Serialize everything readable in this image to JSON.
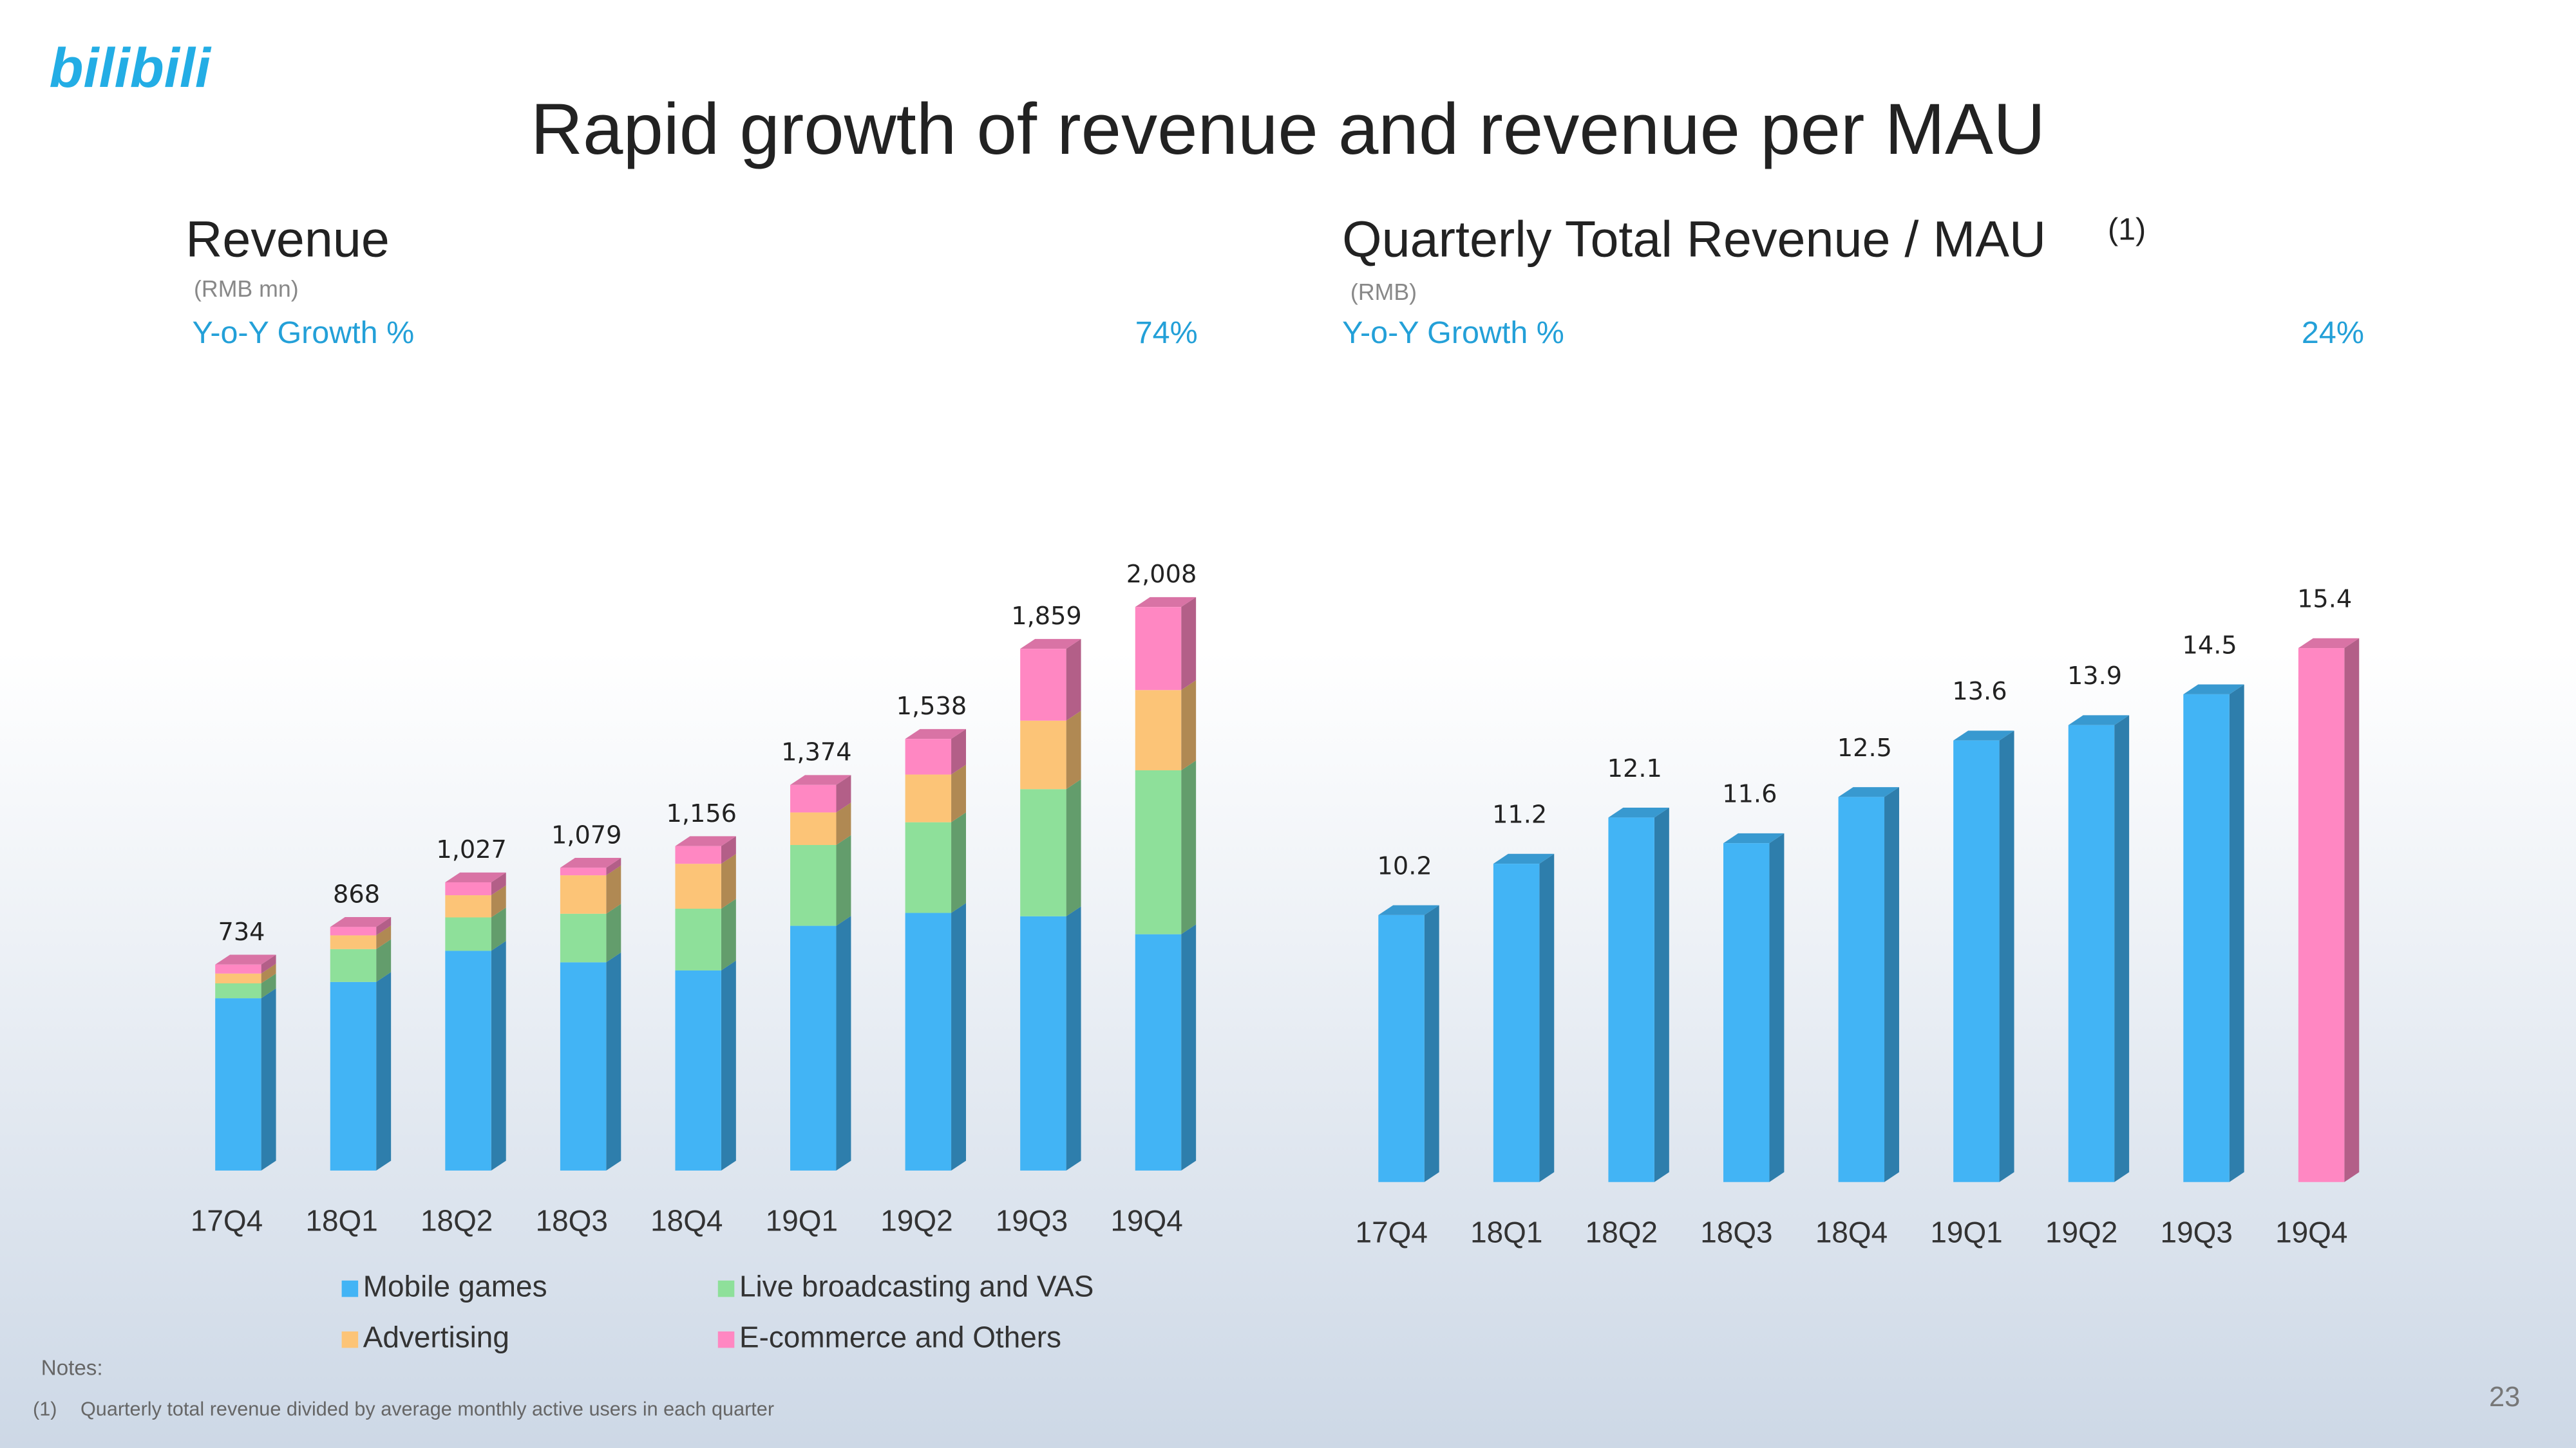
{
  "logo": "bilibili",
  "title": "Rapid growth of revenue and revenue per MAU",
  "notes_heading": "Notes:",
  "note_marker": "(1)",
  "note_text": "Quarterly total revenue divided by average monthly active users in each quarter",
  "page_number": "23",
  "chart_data": [
    {
      "type": "stacked_bar",
      "title": "Revenue",
      "subtitle": "(RMB mn)",
      "growth_label": "Y-o-Y Growth %",
      "growth_value": "74%",
      "categories": [
        "17Q4",
        "18Q1",
        "18Q2",
        "18Q3",
        "18Q4",
        "19Q1",
        "19Q2",
        "19Q3",
        "19Q4"
      ],
      "series": [
        {
          "name": "Mobile games",
          "color": "#42b4f5",
          "values": [
            614,
            672,
            783,
            742,
            713,
            872,
            918,
            906,
            842
          ]
        },
        {
          "name": "Live broadcasting and VAS",
          "color": "#8ee09a",
          "values": [
            53,
            117,
            119,
            173,
            220,
            288,
            323,
            453,
            584
          ]
        },
        {
          "name": "Advertising",
          "color": "#fcc477",
          "values": [
            35,
            49,
            79,
            137,
            160,
            116,
            170,
            244,
            286
          ]
        },
        {
          "name": "E-commerce and Others",
          "color": "#ff87c2",
          "values": [
            32,
            30,
            46,
            27,
            63,
            98,
            127,
            256,
            296
          ]
        }
      ],
      "totals": [
        734,
        868,
        1027,
        1079,
        1156,
        1374,
        1538,
        1859,
        2008
      ],
      "total_labels": [
        "734",
        "868",
        "1,027",
        "1,079",
        "1,156",
        "1,374",
        "1,538",
        "1,859",
        "2,008"
      ],
      "ylim": [
        0,
        2100
      ],
      "grid": false
    },
    {
      "type": "bar",
      "title": "Quarterly Total Revenue / MAU",
      "title_note": "(1)",
      "subtitle": "(RMB)",
      "growth_label": "Y-o-Y Growth %",
      "growth_value": "24%",
      "categories": [
        "17Q4",
        "18Q1",
        "18Q2",
        "18Q3",
        "18Q4",
        "19Q1",
        "19Q2",
        "19Q3",
        "19Q4"
      ],
      "values": [
        10.2,
        11.2,
        12.1,
        11.6,
        12.5,
        13.6,
        13.9,
        14.5,
        15.4
      ],
      "colors": [
        "#42b4f5",
        "#42b4f5",
        "#42b4f5",
        "#42b4f5",
        "#42b4f5",
        "#42b4f5",
        "#42b4f5",
        "#42b4f5",
        "#ff87c2"
      ],
      "ylim": [
        5,
        16
      ],
      "grid": false
    }
  ]
}
